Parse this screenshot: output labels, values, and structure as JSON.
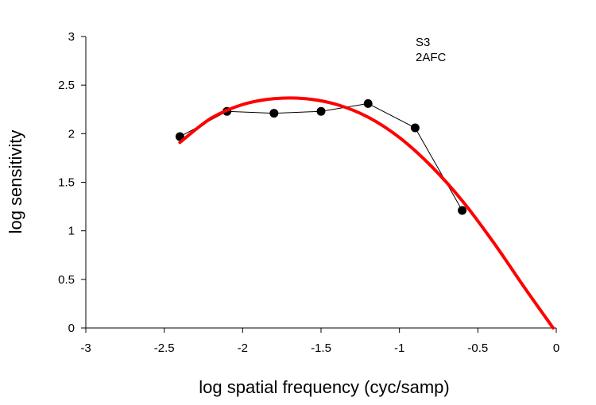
{
  "chart_data": {
    "type": "line",
    "title": "",
    "xlabel": "log spatial frequency (cyc/samp)",
    "ylabel": "log sensitivity",
    "xlim": [
      -3,
      0
    ],
    "ylim": [
      0,
      3
    ],
    "xticks": [
      -3,
      -2.5,
      -2,
      -1.5,
      -1,
      -0.5,
      0
    ],
    "xtick_labels": [
      "-3",
      "-2.5",
      "-2",
      "-1.5",
      "-1",
      "-0.5",
      "0"
    ],
    "yticks": [
      0,
      0.5,
      1,
      1.5,
      2,
      2.5,
      3
    ],
    "ytick_labels": [
      "0",
      "0.5",
      "1",
      "1.5",
      "2",
      "2.5",
      "3"
    ],
    "annotations": [
      "S3",
      "2AFC"
    ],
    "grid": false,
    "series": [
      {
        "style": "markers-line",
        "color": "#000000",
        "x": [
          -2.4,
          -2.1,
          -1.8,
          -1.5,
          -1.2,
          -0.9,
          -0.6
        ],
        "y": [
          1.97,
          2.23,
          2.21,
          2.23,
          2.31,
          2.06,
          1.21
        ]
      },
      {
        "style": "curve",
        "color": "#ff0000",
        "x": [
          -2.4,
          -2.2,
          -2.0,
          -1.8,
          -1.6,
          -1.4,
          -1.2,
          -1.0,
          -0.8,
          -0.6,
          -0.4,
          -0.2,
          -0.02
        ],
        "y": [
          1.91,
          2.16,
          2.3,
          2.36,
          2.36,
          2.3,
          2.17,
          1.96,
          1.67,
          1.31,
          0.88,
          0.41,
          0.0
        ]
      }
    ]
  }
}
